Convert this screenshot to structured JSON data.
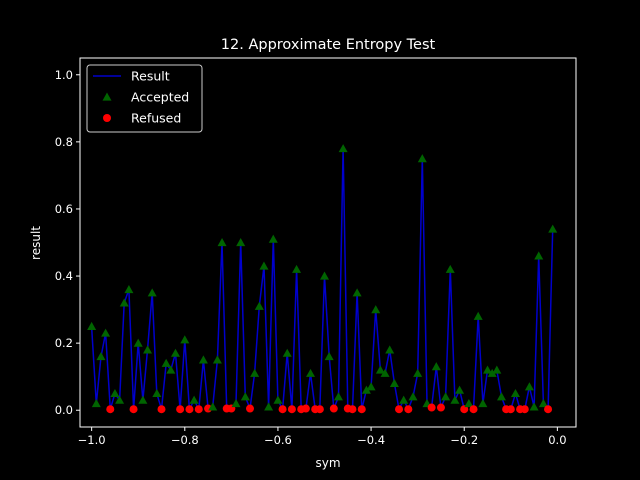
{
  "chart_data": {
    "type": "line",
    "title": "12. Approximate Entropy Test",
    "xlabel": "sym",
    "ylabel": "result",
    "xlim": [
      -1.025,
      0.04
    ],
    "ylim": [
      -0.05,
      1.05
    ],
    "xticks": [
      -1.0,
      -0.8,
      -0.6,
      -0.4,
      -0.2,
      0.0
    ],
    "xtick_labels": [
      "−1.0",
      "−0.8",
      "−0.6",
      "−0.4",
      "−0.2",
      "0.0"
    ],
    "yticks": [
      0.0,
      0.2,
      0.4,
      0.6,
      0.8,
      1.0
    ],
    "ytick_labels": [
      "0.0",
      "0.2",
      "0.4",
      "0.6",
      "0.8",
      "1.0"
    ],
    "grid": false,
    "legend_position": "top-left",
    "legend": [
      {
        "label": "Result",
        "kind": "line",
        "color": "#0000cc"
      },
      {
        "label": "Accepted",
        "kind": "triangle",
        "color": "#006400"
      },
      {
        "label": "Refused",
        "kind": "circle",
        "color": "#ff0000"
      }
    ],
    "x": [
      -1.0,
      -0.99,
      -0.98,
      -0.97,
      -0.96,
      -0.95,
      -0.94,
      -0.93,
      -0.92,
      -0.91,
      -0.9,
      -0.89,
      -0.88,
      -0.87,
      -0.86,
      -0.85,
      -0.84,
      -0.83,
      -0.82,
      -0.81,
      -0.8,
      -0.79,
      -0.78,
      -0.77,
      -0.76,
      -0.75,
      -0.74,
      -0.73,
      -0.72,
      -0.71,
      -0.7,
      -0.69,
      -0.68,
      -0.67,
      -0.66,
      -0.65,
      -0.64,
      -0.63,
      -0.62,
      -0.61,
      -0.6,
      -0.59,
      -0.58,
      -0.57,
      -0.56,
      -0.55,
      -0.54,
      -0.53,
      -0.52,
      -0.51,
      -0.5,
      -0.49,
      -0.48,
      -0.47,
      -0.46,
      -0.45,
      -0.44,
      -0.43,
      -0.42,
      -0.41,
      -0.4,
      -0.39,
      -0.38,
      -0.37,
      -0.36,
      -0.35,
      -0.34,
      -0.33,
      -0.32,
      -0.31,
      -0.3,
      -0.29,
      -0.28,
      -0.27,
      -0.26,
      -0.25,
      -0.24,
      -0.23,
      -0.22,
      -0.21,
      -0.2,
      -0.19,
      -0.18,
      -0.17,
      -0.16,
      -0.15,
      -0.14,
      -0.13,
      -0.12,
      -0.11,
      -0.1,
      -0.09,
      -0.08,
      -0.07,
      -0.06,
      -0.05,
      -0.04,
      -0.03,
      -0.02,
      -0.01
    ],
    "values": [
      0.25,
      0.02,
      0.16,
      0.23,
      0.003,
      0.05,
      0.03,
      0.32,
      0.36,
      0.003,
      0.2,
      0.03,
      0.18,
      0.35,
      0.05,
      0.003,
      0.14,
      0.12,
      0.17,
      0.003,
      0.21,
      0.003,
      0.03,
      0.003,
      0.15,
      0.005,
      0.01,
      0.15,
      0.5,
      0.005,
      0.005,
      0.02,
      0.5,
      0.04,
      0.005,
      0.11,
      0.31,
      0.43,
      0.01,
      0.51,
      0.03,
      0.003,
      0.17,
      0.003,
      0.42,
      0.003,
      0.005,
      0.11,
      0.003,
      0.003,
      0.4,
      0.16,
      0.005,
      0.04,
      0.78,
      0.005,
      0.003,
      0.35,
      0.003,
      0.06,
      0.07,
      0.3,
      0.12,
      0.11,
      0.18,
      0.08,
      0.003,
      0.03,
      0.003,
      0.04,
      0.11,
      0.75,
      0.02,
      0.008,
      0.13,
      0.008,
      0.04,
      0.42,
      0.03,
      0.06,
      0.003,
      0.02,
      0.003,
      0.28,
      0.02,
      0.12,
      0.11,
      0.12,
      0.04,
      0.003,
      0.003,
      0.05,
      0.003,
      0.003,
      0.07,
      0.01,
      0.46,
      0.02,
      0.003,
      0.54
    ],
    "series": [
      {
        "name": "Result",
        "color": "#0000cc"
      },
      {
        "name": "Accepted",
        "color": "#006400"
      },
      {
        "name": "Refused",
        "color": "#ff0000"
      }
    ],
    "refused_threshold": 0.01
  }
}
